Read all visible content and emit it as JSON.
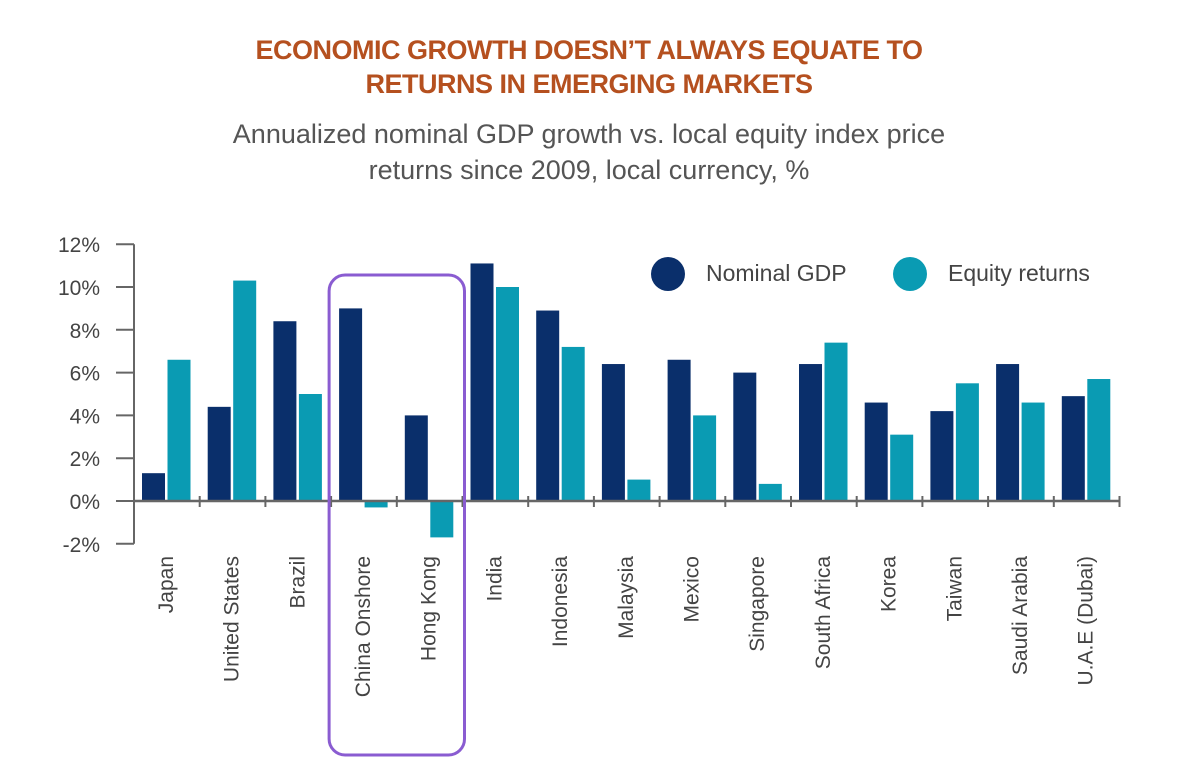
{
  "chart_data": {
    "type": "bar",
    "title": "ECONOMIC GROWTH DOESN’T ALWAYS EQUATE TO RETURNS IN EMERGING MARKETS",
    "title_lines": [
      "ECONOMIC GROWTH DOESN’T ALWAYS EQUATE TO",
      "RETURNS IN EMERGING MARKETS"
    ],
    "subtitle_lines": [
      "Annualized nominal GDP growth vs. local equity index price",
      "returns since 2009, local currency,  %"
    ],
    "xlabel": "",
    "ylabel": "",
    "ylim": [
      -2,
      12
    ],
    "yticks": [
      -2,
      0,
      2,
      4,
      6,
      8,
      10,
      12
    ],
    "ytick_labels": [
      "-2%",
      "0%",
      "2%",
      "4%",
      "6%",
      "8%",
      "10%",
      "12%"
    ],
    "grid": false,
    "legend_position": "top-right",
    "categories": [
      "Japan",
      "United States",
      "Brazil",
      "China Onshore",
      "Hong Kong",
      "India",
      "Indonesia",
      "Malaysia",
      "Mexico",
      "Singapore",
      "South Africa",
      "Korea",
      "Taiwan",
      "Saudi Arabia",
      "U.A.E (Dubai)"
    ],
    "series": [
      {
        "name": "Nominal GDP",
        "color": "#0a2f6b",
        "values": [
          1.3,
          4.4,
          8.4,
          9.0,
          4.0,
          11.1,
          8.9,
          6.4,
          6.6,
          6.0,
          6.4,
          4.6,
          4.2,
          6.4,
          4.9
        ]
      },
      {
        "name": "Equity returns",
        "color": "#0a9bb3",
        "values": [
          6.6,
          10.3,
          5.0,
          -0.3,
          -1.7,
          10.0,
          7.2,
          1.0,
          4.0,
          0.8,
          7.4,
          3.1,
          5.5,
          4.6,
          5.7
        ]
      }
    ],
    "annotation": {
      "type": "highlight-box",
      "categories": [
        "China Onshore",
        "Hong Kong"
      ],
      "color": "#8a5cd1"
    }
  }
}
